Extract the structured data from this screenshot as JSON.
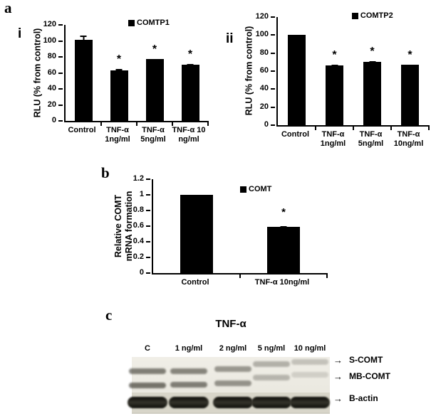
{
  "figure": {
    "panels": {
      "a": "a",
      "i": "i",
      "ii": "ii",
      "b": "b",
      "c": "c"
    }
  },
  "chart_data": [
    {
      "id": "comtp1",
      "type": "bar",
      "legend": "COMTP1",
      "legend_position": "top-center",
      "ylabel": "RLU (% from control)",
      "categories": [
        "Control",
        "TNF-α\n1ng/ml",
        "TNF-α\n5ng/ml",
        "TNF-α 10\nng/ml"
      ],
      "values": [
        101,
        63,
        77,
        70
      ],
      "errors": [
        6,
        2,
        0,
        1
      ],
      "significant": [
        false,
        true,
        true,
        true
      ],
      "ylim": [
        0,
        120
      ],
      "yticks": [
        "0",
        "20",
        "40",
        "60",
        "80",
        "100",
        "120"
      ],
      "grid": false,
      "bar_color": "#000000"
    },
    {
      "id": "comtp2",
      "type": "bar",
      "legend": "COMTP2",
      "legend_position": "top-center",
      "ylabel": "RLU (% from control)",
      "categories": [
        "Control",
        "TNF-α\n1ng/ml",
        "TNF-α\n5ng/ml",
        "TNF-α\n10ng/ml"
      ],
      "values": [
        100,
        66,
        70,
        67
      ],
      "errors": [
        0,
        1,
        1,
        0
      ],
      "significant": [
        false,
        true,
        true,
        true
      ],
      "ylim": [
        0,
        120
      ],
      "yticks": [
        "0",
        "20",
        "40",
        "60",
        "80",
        "100",
        "120"
      ],
      "grid": false,
      "bar_color": "#000000"
    },
    {
      "id": "comt",
      "type": "bar",
      "legend": "COMT",
      "legend_position": "top-center",
      "ylabel": "Relative COMT\nmRNA formation",
      "categories": [
        "Control",
        "TNF-α 10ng/ml"
      ],
      "values": [
        1,
        0.59
      ],
      "errors": [
        0,
        0.01
      ],
      "significant": [
        false,
        true
      ],
      "ylim": [
        0,
        1.2
      ],
      "yticks": [
        "0",
        "0.2",
        "0.4",
        "0.6",
        "0.8",
        "1",
        "1.2"
      ],
      "grid": false,
      "bar_color": "#000000"
    }
  ],
  "blot": {
    "title": "TNF-α",
    "lanes": [
      "C",
      "1 ng/ml",
      "2 ng/ml",
      "5 ng/ml",
      "10 ng/ml"
    ],
    "bands": [
      {
        "label": "S-COMT",
        "intensities": [
          0.62,
          0.58,
          0.48,
          0.34,
          0.24
        ]
      },
      {
        "label": "MB-COMT",
        "intensities": [
          0.68,
          0.62,
          0.5,
          0.3,
          0.16
        ]
      },
      {
        "label": "B-actin",
        "intensities": [
          1,
          1,
          1,
          1,
          1
        ]
      }
    ],
    "arrow_icon": "→"
  },
  "colors": {
    "bar": "#000000",
    "text": "#000000",
    "blot_bg": "#ece9e1",
    "actin_strip_bg": "#d8d5c9"
  }
}
